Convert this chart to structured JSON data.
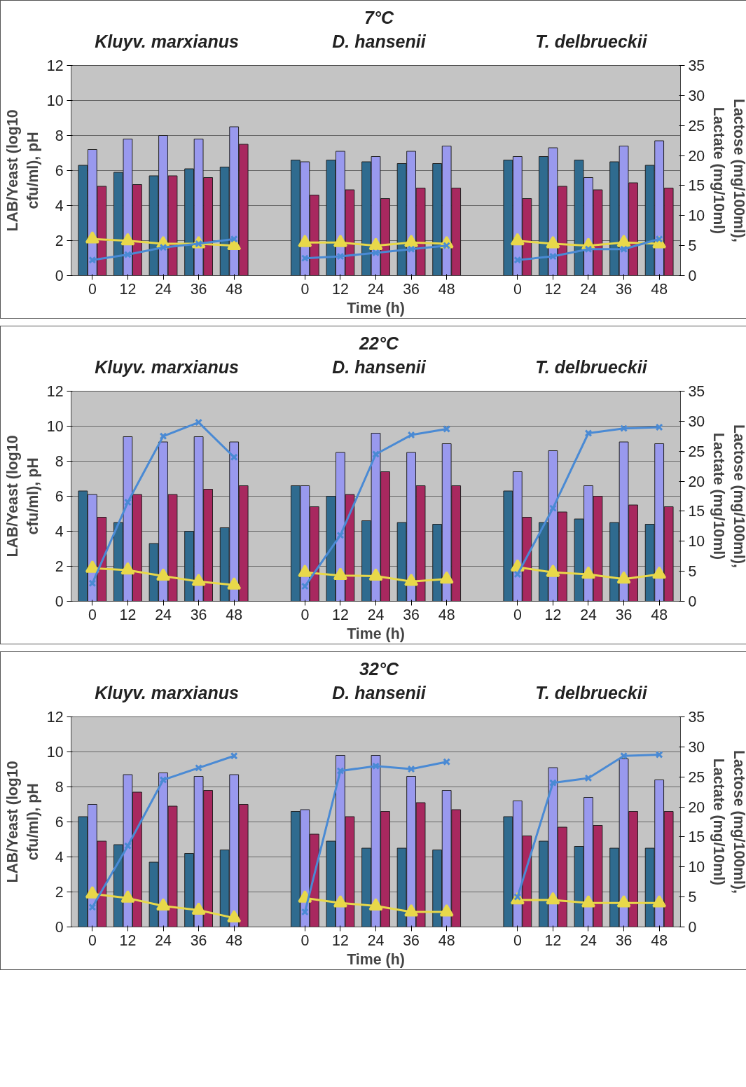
{
  "chart_data": [
    {
      "type": "bar",
      "title": "7°C",
      "annotations": [
        "Kluyv. marxianus",
        "D. hansenii",
        "T. delbrueckii"
      ],
      "xlabel": "Time (h)",
      "ylabel": "LAB/Yeast (log10 cfu/ml), pH",
      "y2label": "Lactose (mg/100ml), Lactate (mg/10ml)",
      "categories": [
        "0",
        "12",
        "24",
        "36",
        "48",
        null,
        "0",
        "12",
        "24",
        "36",
        "48",
        null,
        "0",
        "12",
        "24",
        "36",
        "48"
      ],
      "ylim": [
        0,
        12
      ],
      "yticks": [
        0,
        2,
        4,
        6,
        8,
        10,
        12
      ],
      "y2lim": [
        0,
        35
      ],
      "y2ticks": [
        0,
        5,
        10,
        15,
        20,
        25,
        30,
        35
      ],
      "grid": "y",
      "series": [
        {
          "color": "#2f6b8f",
          "values": [
            6.3,
            5.9,
            5.7,
            6.1,
            6.2,
            null,
            6.6,
            6.6,
            6.5,
            6.4,
            6.4,
            null,
            6.6,
            6.8,
            6.6,
            6.5,
            6.3
          ]
        },
        {
          "color": "#9999ee",
          "values": [
            7.2,
            7.8,
            8.0,
            7.8,
            8.5,
            null,
            6.5,
            7.1,
            6.8,
            7.1,
            7.4,
            null,
            6.8,
            7.3,
            5.6,
            7.4,
            7.7
          ]
        },
        {
          "color": "#a8285f",
          "values": [
            5.1,
            5.2,
            5.7,
            5.6,
            7.5,
            null,
            4.6,
            4.9,
            4.4,
            5.0,
            5.0,
            null,
            4.4,
            5.1,
            4.9,
            5.3,
            5.0
          ]
        },
        {
          "type": "line",
          "axis": "y2",
          "marker": "triangle",
          "color": "#e8d84a",
          "values": [
            6.1,
            5.8,
            5.3,
            5.3,
            5.0,
            null,
            5.5,
            5.5,
            5.0,
            5.5,
            5.3,
            null,
            5.8,
            5.3,
            5.0,
            5.5,
            5.3
          ]
        },
        {
          "type": "line",
          "axis": "y2",
          "marker": "cross",
          "color": "#4a8ad4",
          "values": [
            2.6,
            3.5,
            4.7,
            5.3,
            6.1,
            null,
            2.9,
            3.2,
            3.8,
            4.4,
            5.0,
            null,
            2.6,
            3.2,
            4.4,
            4.4,
            6.1
          ]
        }
      ]
    },
    {
      "type": "bar",
      "title": "22°C",
      "annotations": [
        "Kluyv. marxianus",
        "D. hansenii",
        "T. delbrueckii"
      ],
      "xlabel": "Time (h)",
      "ylabel": "LAB/Yeast (log10 cfu/ml), pH",
      "y2label": "Lactose (mg/100ml), Lactate (mg/10ml)",
      "categories": [
        "0",
        "12",
        "24",
        "36",
        "48",
        null,
        "0",
        "12",
        "24",
        "36",
        "48",
        null,
        "0",
        "12",
        "24",
        "36",
        "48"
      ],
      "ylim": [
        0,
        12
      ],
      "yticks": [
        0,
        2,
        4,
        6,
        8,
        10,
        12
      ],
      "y2lim": [
        0,
        35
      ],
      "y2ticks": [
        0,
        5,
        10,
        15,
        20,
        25,
        30,
        35
      ],
      "grid": "y",
      "series": [
        {
          "color": "#2f6b8f",
          "values": [
            6.3,
            4.5,
            3.3,
            4.0,
            4.2,
            null,
            6.6,
            6.0,
            4.6,
            4.5,
            4.4,
            null,
            6.3,
            4.5,
            4.7,
            4.5,
            4.4
          ]
        },
        {
          "color": "#9999ee",
          "values": [
            6.1,
            9.4,
            9.1,
            9.4,
            9.1,
            null,
            6.6,
            8.5,
            9.6,
            8.5,
            9.0,
            null,
            7.4,
            8.6,
            6.6,
            9.1,
            9.0
          ]
        },
        {
          "color": "#a8285f",
          "values": [
            4.8,
            6.1,
            6.1,
            6.4,
            6.6,
            null,
            5.4,
            6.1,
            7.4,
            6.6,
            6.6,
            null,
            4.8,
            5.1,
            6.0,
            5.5,
            5.4
          ]
        },
        {
          "type": "line",
          "axis": "y2",
          "marker": "triangle",
          "color": "#e8d84a",
          "values": [
            5.5,
            5.2,
            4.2,
            3.3,
            2.7,
            null,
            4.8,
            4.3,
            4.2,
            3.3,
            3.7,
            null,
            5.7,
            4.8,
            4.5,
            3.7,
            4.5
          ]
        },
        {
          "type": "line",
          "axis": "y2",
          "marker": "cross",
          "color": "#4a8ad4",
          "values": [
            3.0,
            16.5,
            27.5,
            29.8,
            24.0,
            null,
            2.5,
            11.0,
            24.5,
            27.7,
            28.7,
            null,
            4.5,
            15.5,
            28.0,
            28.8,
            29.0
          ]
        }
      ]
    },
    {
      "type": "bar",
      "title": "32°C",
      "annotations": [
        "Kluyv. marxianus",
        "D. hansenii",
        "T. delbrueckii"
      ],
      "xlabel": "Time (h)",
      "ylabel": "LAB/Yeast (log10 cfu/ml), pH",
      "y2label": "Lactose (mg/100ml), Lactate (mg/10ml)",
      "categories": [
        "0",
        "12",
        "24",
        "36",
        "48",
        null,
        "0",
        "12",
        "24",
        "36",
        "48",
        null,
        "0",
        "12",
        "24",
        "36",
        "48"
      ],
      "ylim": [
        0,
        12
      ],
      "yticks": [
        0,
        2,
        4,
        6,
        8,
        10,
        12
      ],
      "y2lim": [
        0,
        35
      ],
      "y2ticks": [
        0,
        5,
        10,
        15,
        20,
        25,
        30,
        35
      ],
      "grid": "y",
      "series": [
        {
          "color": "#2f6b8f",
          "values": [
            6.3,
            4.7,
            3.7,
            4.2,
            4.4,
            null,
            6.6,
            4.9,
            4.5,
            4.5,
            4.4,
            null,
            6.3,
            4.9,
            4.6,
            4.5,
            4.5
          ]
        },
        {
          "color": "#9999ee",
          "values": [
            7.0,
            8.7,
            8.8,
            8.6,
            8.7,
            null,
            6.7,
            9.8,
            9.8,
            8.6,
            7.8,
            null,
            7.2,
            9.1,
            7.4,
            9.6,
            8.4
          ]
        },
        {
          "color": "#a8285f",
          "values": [
            4.9,
            7.7,
            6.9,
            7.8,
            7.0,
            null,
            5.3,
            6.3,
            6.6,
            7.1,
            6.7,
            null,
            5.2,
            5.7,
            5.8,
            6.6,
            6.6
          ]
        },
        {
          "type": "line",
          "axis": "y2",
          "marker": "triangle",
          "color": "#e8d84a",
          "values": [
            5.5,
            4.8,
            3.5,
            2.8,
            1.5,
            null,
            4.8,
            4.0,
            3.5,
            2.5,
            2.5,
            null,
            4.5,
            4.5,
            4.0,
            4.0,
            4.0
          ]
        },
        {
          "type": "line",
          "axis": "y2",
          "marker": "cross",
          "color": "#4a8ad4",
          "values": [
            3.3,
            13.5,
            24.5,
            26.5,
            28.5,
            null,
            2.5,
            26.0,
            26.8,
            26.3,
            27.5,
            null,
            5.0,
            24.0,
            24.8,
            28.5,
            28.7
          ]
        }
      ]
    }
  ]
}
